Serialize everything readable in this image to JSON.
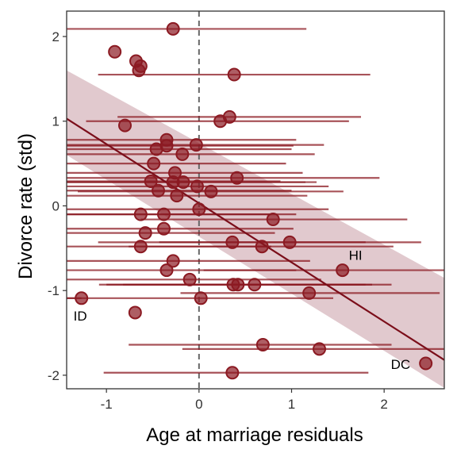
{
  "chart_data": {
    "type": "scatter",
    "title": "",
    "xlabel": "Age at marriage residuals",
    "ylabel": "Divorce rate (std)",
    "xlim": [
      -1.43,
      2.65
    ],
    "ylim": [
      -2.16,
      2.3
    ],
    "xticks": [
      "-1",
      "0",
      "1",
      "2"
    ],
    "xtick_values": [
      -1,
      0,
      1,
      2
    ],
    "yticks": [
      "-2",
      "-1",
      "0",
      "1",
      "2"
    ],
    "ytick_values": [
      -2,
      -1,
      0,
      1,
      2
    ],
    "reference_line": {
      "x": 0,
      "style": "dashed"
    },
    "regression": {
      "x": [
        -1.43,
        2.65
      ],
      "y": [
        1.03,
        -1.82
      ],
      "band_lower": [
        0.6,
        -2.15
      ],
      "band_upper": [
        1.6,
        -0.85
      ],
      "color": "#7b0e1a",
      "band_color": "#dcc0c5"
    },
    "point_color": "#8b1a22",
    "points": [
      {
        "x": -0.28,
        "y": 2.09,
        "xmin": -1.43,
        "xmax": 1.16
      },
      {
        "x": -0.91,
        "y": 1.82,
        "xmin": -0.91,
        "xmax": -0.91
      },
      {
        "x": -0.68,
        "y": 1.71,
        "xmin": -0.68,
        "xmax": -0.68
      },
      {
        "x": -0.63,
        "y": 1.65,
        "xmin": -0.63,
        "xmax": -0.63
      },
      {
        "x": -0.65,
        "y": 1.6,
        "xmin": -0.65,
        "xmax": -0.65
      },
      {
        "x": 0.38,
        "y": 1.55,
        "xmin": -1.09,
        "xmax": 1.85
      },
      {
        "x": 0.33,
        "y": 1.05,
        "xmin": -0.88,
        "xmax": 1.75
      },
      {
        "x": 0.23,
        "y": 1.0,
        "xmin": -1.22,
        "xmax": 1.62
      },
      {
        "x": -0.8,
        "y": 0.95,
        "xmin": -0.8,
        "xmax": -0.8
      },
      {
        "x": -0.35,
        "y": 0.78,
        "xmin": -1.43,
        "xmax": 1.05
      },
      {
        "x": -0.03,
        "y": 0.72,
        "xmin": -1.43,
        "xmax": 1.35
      },
      {
        "x": -0.35,
        "y": 0.71,
        "xmin": -1.43,
        "xmax": 1.02
      },
      {
        "x": -0.46,
        "y": 0.67,
        "xmin": -1.43,
        "xmax": 1.0
      },
      {
        "x": -0.18,
        "y": 0.61,
        "xmin": -1.43,
        "xmax": 1.25
      },
      {
        "x": -0.49,
        "y": 0.5,
        "xmin": -1.43,
        "xmax": 0.94
      },
      {
        "x": -0.26,
        "y": 0.39,
        "xmin": -1.43,
        "xmax": 1.12
      },
      {
        "x": 0.41,
        "y": 0.33,
        "xmin": -1.43,
        "xmax": 1.95
      },
      {
        "x": -0.52,
        "y": 0.29,
        "xmin": -1.43,
        "xmax": 0.88
      },
      {
        "x": -0.28,
        "y": 0.28,
        "xmin": -1.43,
        "xmax": 1.15
      },
      {
        "x": -0.17,
        "y": 0.28,
        "xmin": -1.43,
        "xmax": 1.27
      },
      {
        "x": -0.02,
        "y": 0.23,
        "xmin": -1.43,
        "xmax": 1.4
      },
      {
        "x": -0.44,
        "y": 0.18,
        "xmin": -1.43,
        "xmax": 1.0
      },
      {
        "x": 0.13,
        "y": 0.17,
        "xmin": -1.31,
        "xmax": 1.56
      },
      {
        "x": -0.24,
        "y": 0.12,
        "xmin": -1.43,
        "xmax": 1.17
      },
      {
        "x": 0.0,
        "y": -0.04,
        "xmin": -1.43,
        "xmax": 1.4
      },
      {
        "x": -0.63,
        "y": -0.1,
        "xmin": -1.43,
        "xmax": 0.78
      },
      {
        "x": -0.38,
        "y": -0.1,
        "xmin": -1.43,
        "xmax": 1.05
      },
      {
        "x": 0.8,
        "y": -0.16,
        "xmin": -0.63,
        "xmax": 2.25
      },
      {
        "x": -0.38,
        "y": -0.27,
        "xmin": -1.43,
        "xmax": 1.02
      },
      {
        "x": -0.58,
        "y": -0.32,
        "xmin": -1.43,
        "xmax": 0.82
      },
      {
        "x": 0.36,
        "y": -0.43,
        "xmin": -1.09,
        "xmax": 1.8
      },
      {
        "x": 0.98,
        "y": -0.43,
        "xmin": -0.43,
        "xmax": 2.4
      },
      {
        "x": 0.68,
        "y": -0.48,
        "xmin": -0.76,
        "xmax": 2.1
      },
      {
        "x": -0.63,
        "y": -0.48,
        "xmin": -1.43,
        "xmax": 0.78
      },
      {
        "x": -0.28,
        "y": -0.65,
        "xmin": -1.43,
        "xmax": 1.2
      },
      {
        "x": -0.35,
        "y": -0.76,
        "xmin": -1.43,
        "xmax": 1.05
      },
      {
        "x": 1.55,
        "y": -0.76,
        "xmin": 0.05,
        "xmax": 2.65
      },
      {
        "x": -0.1,
        "y": -0.87,
        "xmin": -1.43,
        "xmax": 1.32
      },
      {
        "x": 0.37,
        "y": -0.93,
        "xmin": -1.08,
        "xmax": 1.8
      },
      {
        "x": 0.42,
        "y": -0.93,
        "xmin": -1.0,
        "xmax": 1.87
      },
      {
        "x": 0.6,
        "y": -0.93,
        "xmin": -0.82,
        "xmax": 2.08
      },
      {
        "x": 1.19,
        "y": -1.03,
        "xmin": -0.2,
        "xmax": 2.6
      },
      {
        "x": 0.02,
        "y": -1.09,
        "xmin": -1.43,
        "xmax": 1.45
      },
      {
        "x": -1.27,
        "y": -1.09,
        "xmin": -1.43,
        "xmax": -1.27
      },
      {
        "x": -0.69,
        "y": -1.26,
        "xmin": -0.69,
        "xmax": -0.69
      },
      {
        "x": 0.69,
        "y": -1.64,
        "xmin": -0.76,
        "xmax": 2.08
      },
      {
        "x": 1.3,
        "y": -1.69,
        "xmin": -0.18,
        "xmax": 2.65
      },
      {
        "x": 2.45,
        "y": -1.86,
        "xmin": 2.45,
        "xmax": 2.45
      },
      {
        "x": 0.36,
        "y": -1.97,
        "xmin": -1.03,
        "xmax": 1.83
      }
    ],
    "annotations": [
      {
        "text": "ID",
        "x": -1.27,
        "y": -1.09,
        "dx": -10,
        "dy": 28
      },
      {
        "text": "HI",
        "x": 1.55,
        "y": -0.76,
        "dx": 8,
        "dy": -13
      },
      {
        "text": "DC",
        "x": 2.45,
        "y": -1.86,
        "dx": -44,
        "dy": 7
      }
    ]
  }
}
